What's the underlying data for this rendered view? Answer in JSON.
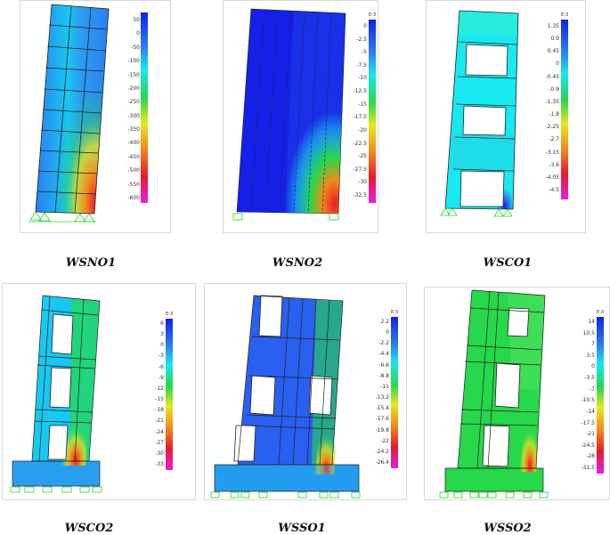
{
  "colors": {
    "deep_blue": "#1420e6",
    "blue": "#2a7ff0",
    "cyan": "#18e8f0",
    "green": "#26d84a",
    "yellow": "#e8e81e",
    "orange": "#f08a1c",
    "red": "#e81a2a",
    "magenta": "#e61ee6",
    "mesh": "#202020",
    "support": "#2ad22a"
  },
  "panels": [
    {
      "id": "wsno1",
      "caption": "WSNO1",
      "exponent": "",
      "ticks": [
        "50",
        "0",
        "-50",
        "-100",
        "-150",
        "-200",
        "-250",
        "-300",
        "-350",
        "-400",
        "-450",
        "-500",
        "-550",
        "-600"
      ]
    },
    {
      "id": "wsno2",
      "caption": "WSNO2",
      "exponent": "E-3",
      "ticks": [
        "0",
        "-2.5",
        "-5",
        "-7.5",
        "-10",
        "-12.5",
        "-15",
        "-17.5",
        "-20",
        "-22.5",
        "-25",
        "-27.5",
        "-30",
        "-32.5"
      ]
    },
    {
      "id": "wsco1",
      "caption": "WSCO1",
      "exponent": "E-3",
      "ticks": [
        "1.35",
        "0.9",
        "0.45",
        "0",
        "-0.45",
        "-0.9",
        "-1.35",
        "-1.8",
        "-2.25",
        "-2.7",
        "-3.15",
        "-3.6",
        "-4.05",
        "-4.5"
      ]
    },
    {
      "id": "wsco2",
      "caption": "WSCO2",
      "exponent": "E-3",
      "ticks": [
        "6",
        "3",
        "0",
        "-3",
        "-6",
        "-9",
        "-12",
        "-15",
        "-18",
        "-21",
        "-24",
        "-27",
        "-30",
        "-33"
      ]
    },
    {
      "id": "wsso1",
      "caption": "WSSO1",
      "exponent": "E-3",
      "ticks": [
        "2.2",
        "0",
        "-2.2",
        "-4.4",
        "-6.6",
        "-8.8",
        "-11",
        "-13.2",
        "-15.4",
        "-17.6",
        "-19.8",
        "-22",
        "-24.2",
        "-26.4"
      ]
    },
    {
      "id": "wsso2",
      "caption": "WSSO2",
      "exponent": "E-3",
      "ticks": [
        "14",
        "10.5",
        "7",
        "3.5",
        "0",
        "-3.5",
        "-7",
        "-10.5",
        "-14",
        "-17.5",
        "-21",
        "-24.5",
        "-28",
        "-31.5"
      ]
    }
  ]
}
